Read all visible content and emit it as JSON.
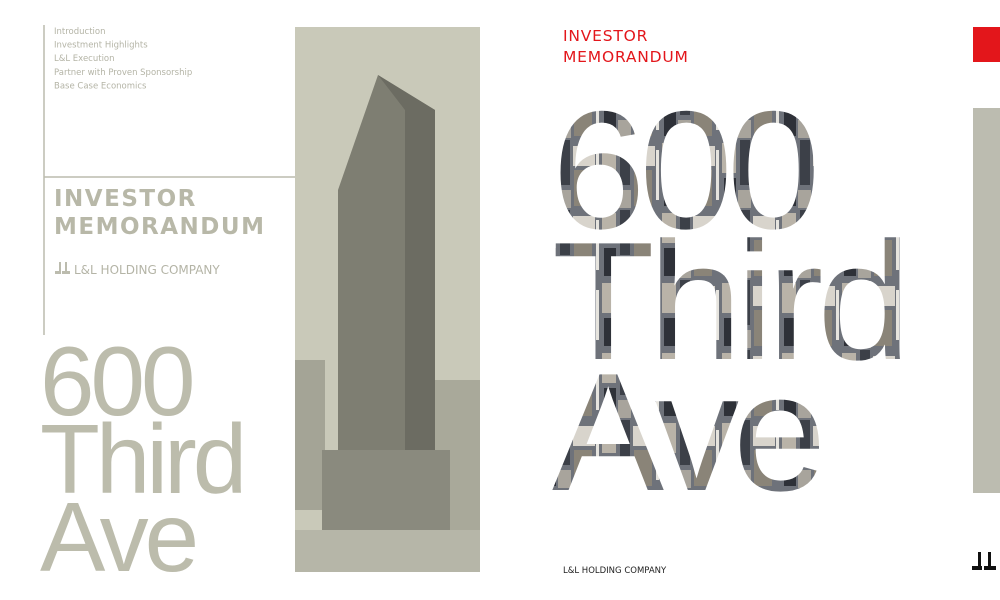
{
  "left_page": {
    "nav": [
      "Introduction",
      "Investment Highlights",
      "L&L Execution",
      "Partner with Proven Sponsorship",
      "Base Case Economics"
    ],
    "title": [
      "INVESTOR",
      "MEMORANDUM"
    ],
    "company": "L&L HOLDING COMPANY",
    "headline": [
      "600",
      "Third",
      "Ave"
    ]
  },
  "right_page": {
    "title": [
      "INVESTOR",
      "MEMORANDUM"
    ],
    "headline": [
      "600",
      "Third",
      "Ave"
    ],
    "company": "L&L HOLDING COMPANY"
  }
}
